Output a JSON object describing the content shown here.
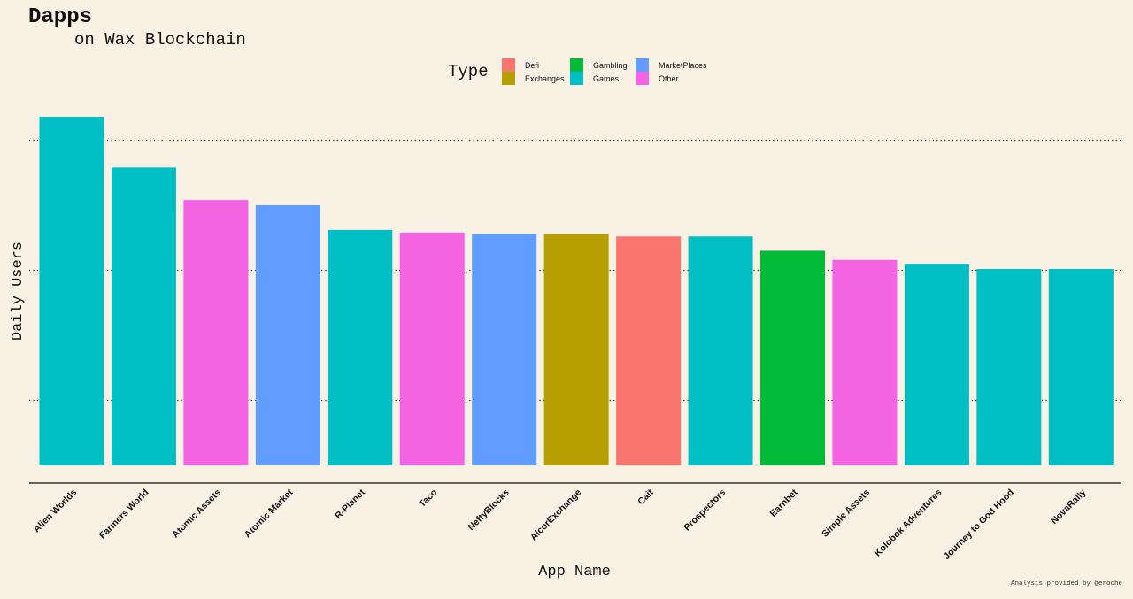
{
  "chart_data": {
    "type": "bar",
    "title": "Dapps",
    "subtitle": "on Wax Blockchain",
    "xlabel": "App Name",
    "ylabel": "Daily Users",
    "legend_title": "Type",
    "legend_position": "top",
    "grid": "horizontal dotted",
    "y_ticks_labeled": false,
    "ylim": [
      0,
      2.68
    ],
    "gridlines": [
      0.5,
      1.5,
      2.5
    ],
    "categories": [
      "Alien Worlds",
      "Farmers World",
      "Atomic Assets",
      "Atomic Market",
      "R-Planet",
      "Taco",
      "NeftyBlocks",
      "AlcorExchange",
      "Cait",
      "Prospectors",
      "Earnbet",
      "Simple Assets",
      "Kolobok Adventures",
      "Journey to God Hood",
      "NovaRally"
    ],
    "values": [
      2.68,
      2.29,
      2.04,
      2.0,
      1.81,
      1.79,
      1.78,
      1.78,
      1.76,
      1.76,
      1.65,
      1.58,
      1.55,
      1.51,
      1.51
    ],
    "types": [
      "Games",
      "Games",
      "Other",
      "MarketPlaces",
      "Games",
      "Other",
      "MarketPlaces",
      "Exchanges",
      "Defi",
      "Games",
      "Gambling",
      "Other",
      "Games",
      "Games",
      "Games"
    ],
    "legend": [
      {
        "name": "Defi",
        "color": "#f8766d"
      },
      {
        "name": "Exchanges",
        "color": "#b79f00"
      },
      {
        "name": "Gambling",
        "color": "#00ba38"
      },
      {
        "name": "Games",
        "color": "#00bfc4"
      },
      {
        "name": "MarketPlaces",
        "color": "#619cff"
      },
      {
        "name": "Other",
        "color": "#f564e3"
      }
    ]
  },
  "footer_note": "Analysis provided by @eroche"
}
